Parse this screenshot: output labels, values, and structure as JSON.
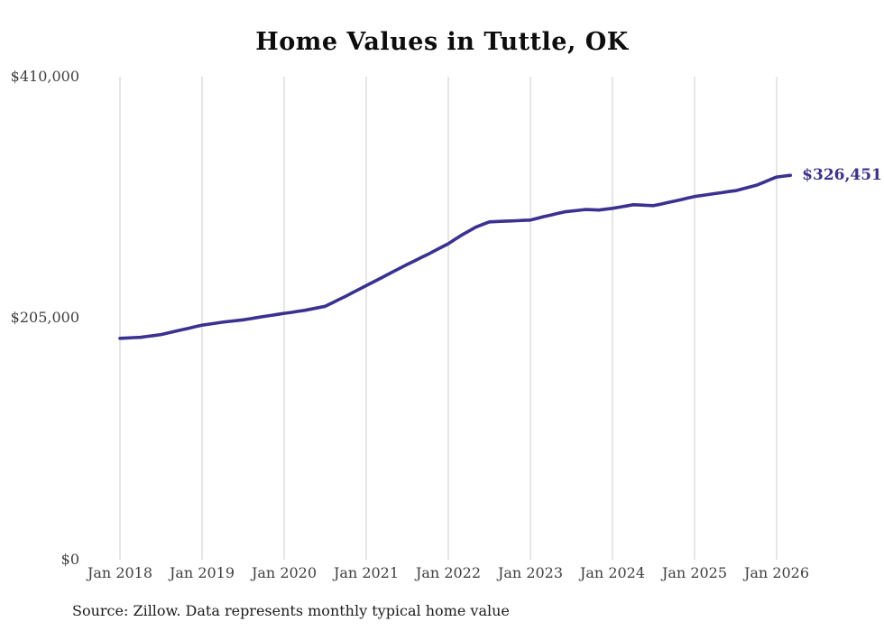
{
  "chart_data": {
    "type": "line",
    "title": "Home Values in Tuttle, OK",
    "xlabel": "",
    "ylabel": "",
    "ylim": [
      0,
      410000
    ],
    "grid": "vertical-only",
    "x_tick_labels": [
      "Jan 2018",
      "Jan 2019",
      "Jan 2020",
      "Jan 2021",
      "Jan 2022",
      "Jan 2023",
      "Jan 2024",
      "Jan 2025",
      "Jan 2026"
    ],
    "y_tick_labels": [
      "$0",
      "$205,000",
      "$410,000"
    ],
    "end_label": "$326,451",
    "source_note": "Source: Zillow. Data represents monthly typical home value",
    "line_color": "#3a3191",
    "grid_color": "#cccccc",
    "text_color": "#3f3f3f",
    "series": [
      {
        "name": "Typical home value",
        "start": "2018-01",
        "frequency": "monthly",
        "values": [
          188300,
          188600,
          188900,
          189200,
          190000,
          190700,
          191500,
          192800,
          194200,
          195500,
          196800,
          198200,
          199500,
          200300,
          201200,
          202000,
          202700,
          203300,
          204000,
          204900,
          205900,
          206800,
          207700,
          208600,
          209500,
          210300,
          211200,
          212000,
          213200,
          214300,
          215500,
          218300,
          221200,
          224000,
          227000,
          230000,
          233000,
          236000,
          239000,
          242000,
          245000,
          248000,
          251000,
          253800,
          256700,
          259500,
          262500,
          265500,
          268500,
          272300,
          276000,
          279300,
          282500,
          284800,
          287000,
          287300,
          287500,
          287800,
          288000,
          288300,
          288500,
          290000,
          291500,
          292800,
          294200,
          295500,
          296200,
          296800,
          297500,
          297300,
          297000,
          297800,
          298500,
          299500,
          300500,
          301500,
          301300,
          301000,
          300800,
          302000,
          303300,
          304500,
          305800,
          307200,
          308500,
          309300,
          310200,
          311000,
          311800,
          312700,
          313500,
          315000,
          316500,
          318000,
          320300,
          322700,
          325000,
          325800,
          326451
        ]
      }
    ]
  }
}
